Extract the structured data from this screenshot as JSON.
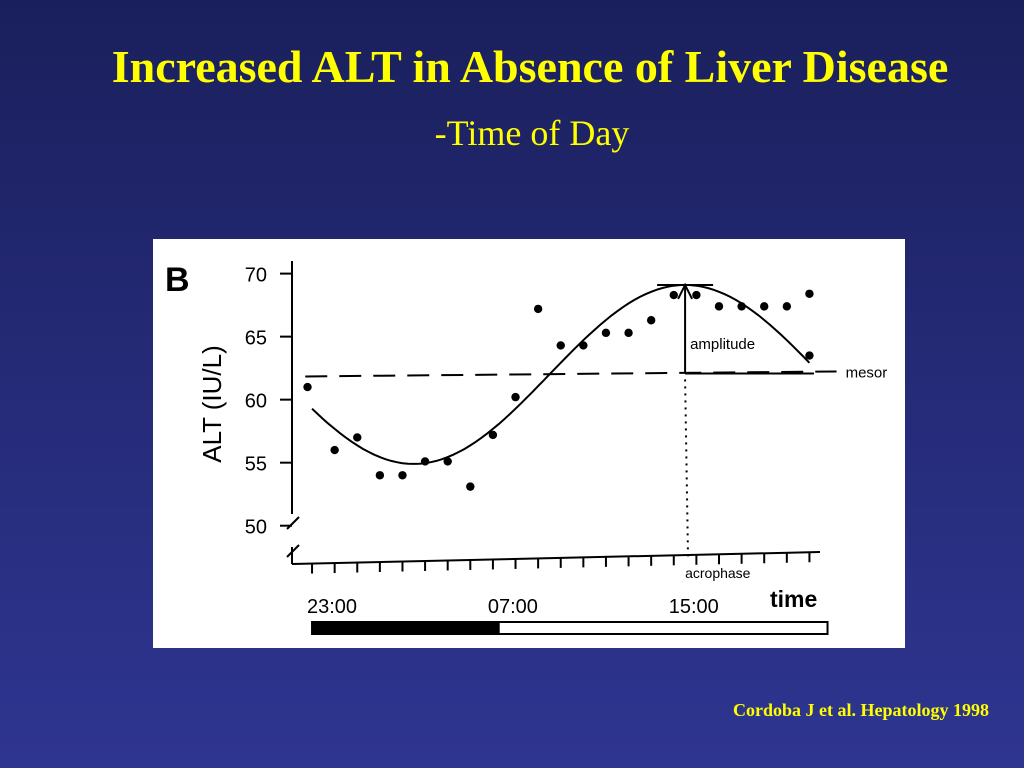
{
  "slide": {
    "title": "Increased ALT in Absence of Liver Disease",
    "subtitle": "-Time of Day",
    "citation": "Cordoba J et al. Hepatology 1998"
  },
  "chart_data": {
    "type": "scatter",
    "panel_label": "B",
    "ylabel": "ALT (IU/L)",
    "xlabel": "time",
    "yticks": [
      50,
      55,
      60,
      65,
      70
    ],
    "ylim": [
      49.5,
      71
    ],
    "xlim": [
      -0.4,
      22.6
    ],
    "x_tick_labels": [
      {
        "x": 0,
        "label": "23:00"
      },
      {
        "x": 8,
        "label": "07:00"
      },
      {
        "x": 16,
        "label": "15:00"
      }
    ],
    "minor_tick_count": 23,
    "x": [
      -0.2,
      1,
      2,
      3,
      4,
      5,
      6,
      7,
      8,
      9,
      10,
      11,
      12,
      13,
      14,
      15,
      16,
      17,
      18,
      19,
      20,
      21,
      22
    ],
    "y": [
      61,
      56,
      57,
      54,
      54,
      55.1,
      55.1,
      53.1,
      57.2,
      60.2,
      67.2,
      64.3,
      64.3,
      65.3,
      65.3,
      66.3,
      68.3,
      68.3,
      67.4,
      67.4,
      67.4,
      67.4,
      68.4
    ],
    "extra_point": {
      "x": 22,
      "y": 63.5
    },
    "cosinor": {
      "mesor": 62,
      "amplitude": 7.1,
      "acrophase_x": 16.5,
      "period": 24
    },
    "annotations": {
      "mesor": "mesor",
      "amplitude": "amplitude",
      "acrophase": "acrophase"
    },
    "time_bar": {
      "dark_from": 0,
      "dark_to": 8.3,
      "light_to": 22.8
    }
  }
}
